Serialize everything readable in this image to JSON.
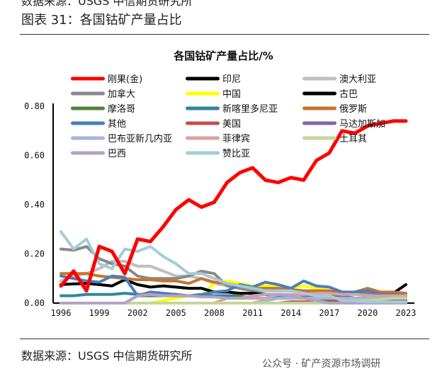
{
  "header": {
    "top_cut_text": "数据来源：USGS 中信期货研究所",
    "figure_title": "图表 31：各国钴矿产量占比"
  },
  "footer": {
    "source": "数据来源：USGS 中信期货研究所",
    "watermark": "公众号 · 矿产资源市场调研"
  },
  "chart_data": {
    "type": "line",
    "title": "各国钴矿产量占比/%",
    "xlabel": "",
    "ylabel": "",
    "ylim": [
      0,
      0.8
    ],
    "yticks": [
      "0.00",
      "0.20",
      "0.40",
      "0.60",
      "0.80"
    ],
    "xticks": [
      "1996",
      "1999",
      "2002",
      "2005",
      "2008",
      "2011",
      "2014",
      "2017",
      "2020",
      "2023"
    ],
    "x": [
      1996,
      1997,
      1998,
      1999,
      2000,
      2001,
      2002,
      2003,
      2004,
      2005,
      2006,
      2007,
      2008,
      2009,
      2010,
      2011,
      2012,
      2013,
      2014,
      2015,
      2016,
      2017,
      2018,
      2019,
      2020,
      2021,
      2022,
      2023
    ],
    "grid": false,
    "legend": "top",
    "series": [
      {
        "name": "刚果(金)",
        "color": "#ff0000",
        "width": 5,
        "values": [
          0.07,
          0.13,
          0.05,
          0.23,
          0.21,
          0.12,
          0.26,
          0.25,
          0.31,
          0.38,
          0.42,
          0.39,
          0.41,
          0.49,
          0.53,
          0.55,
          0.5,
          0.49,
          0.51,
          0.5,
          0.58,
          0.61,
          0.7,
          0.69,
          0.72,
          0.73,
          0.74,
          0.74
        ]
      },
      {
        "name": "印尼",
        "color": "#000000",
        "width": 4,
        "values": [
          0,
          0,
          0,
          0,
          0,
          0,
          0,
          0,
          0,
          0,
          0,
          0,
          0,
          0,
          0,
          0,
          0,
          0,
          0,
          0,
          0,
          0,
          0.005,
          0.01,
          0.01,
          0.02,
          0.04,
          0.075
        ]
      },
      {
        "name": "澳大利亚",
        "color": "#bfbfbf",
        "width": 4,
        "values": [
          0.09,
          0.11,
          0.12,
          0.14,
          0.17,
          0.17,
          0.15,
          0.15,
          0.13,
          0.11,
          0.11,
          0.1,
          0.08,
          0.07,
          0.07,
          0.06,
          0.05,
          0.05,
          0.05,
          0.05,
          0.04,
          0.04,
          0.04,
          0.04,
          0.03,
          0.03,
          0.03,
          0.03
        ]
      },
      {
        "name": "加拿大",
        "color": "#898989",
        "width": 4,
        "values": [
          0.22,
          0.215,
          0.23,
          0.18,
          0.16,
          0.15,
          0.11,
          0.1,
          0.1,
          0.1,
          0.11,
          0.13,
          0.12,
          0.07,
          0.06,
          0.05,
          0.05,
          0.05,
          0.05,
          0.05,
          0.04,
          0.04,
          0.04,
          0.04,
          0.04,
          0.03,
          0.03,
          0.03
        ]
      },
      {
        "name": "中国",
        "color": "#ffff00",
        "width": 4,
        "values": [
          0,
          0,
          0,
          0,
          0,
          0,
          0,
          0,
          0.01,
          0.02,
          0.03,
          0.03,
          0.08,
          0.09,
          0.08,
          0.07,
          0.07,
          0.07,
          0.06,
          0.07,
          0.06,
          0.05,
          0.04,
          0.04,
          0.02,
          0.01,
          0.01,
          0.01
        ]
      },
      {
        "name": "古巴",
        "color": "#000000",
        "width": 4,
        "values": [
          0.075,
          0.078,
          0.08,
          0.075,
          0.07,
          0.095,
          0.075,
          0.065,
          0.07,
          0.065,
          0.06,
          0.06,
          0.045,
          0.045,
          0.04,
          0.04,
          0.035,
          0.03,
          0.03,
          0.025,
          0.02,
          0.02,
          0.02,
          0.02,
          0.02,
          0.02,
          0.02,
          0.02
        ]
      },
      {
        "name": "摩洛哥",
        "color": "#548235",
        "width": 4,
        "values": [
          0,
          0,
          0,
          0,
          0,
          0,
          0.03,
          0.03,
          0.03,
          0.03,
          0.03,
          0.03,
          0.03,
          0.03,
          0.03,
          0.02,
          0.02,
          0.02,
          0.02,
          0.02,
          0.02,
          0.01,
          0.01,
          0.01,
          0.01,
          0.01,
          0.01,
          0.01
        ]
      },
      {
        "name": "新喀里多尼亚",
        "color": "#31859c",
        "width": 4,
        "values": [
          0.03,
          0.03,
          0.035,
          0.035,
          0.035,
          0.04,
          0.035,
          0.035,
          0.035,
          0.035,
          0.03,
          0.03,
          0.03,
          0.03,
          0.02,
          0.02,
          0.02,
          0.025,
          0.03,
          0.03,
          0.025,
          0.02,
          0.02,
          0.02,
          0.02,
          0.02,
          0.02,
          0.02
        ]
      },
      {
        "name": "俄罗斯",
        "color": "#c8742f",
        "width": 4,
        "values": [
          0.12,
          0.12,
          0.12,
          0.11,
          0.105,
          0.1,
          0.095,
          0.095,
          0.09,
          0.09,
          0.08,
          0.1,
          0.085,
          0.08,
          0.07,
          0.06,
          0.06,
          0.06,
          0.055,
          0.05,
          0.05,
          0.05,
          0.04,
          0.045,
          0.06,
          0.045,
          0.045,
          0.04
        ]
      },
      {
        "name": "其他",
        "color": "#4a7ebb",
        "width": 4,
        "values": [
          0.11,
          0.1,
          0.09,
          0.085,
          0.11,
          0.105,
          0.03,
          0.045,
          0.04,
          0.035,
          0.03,
          0.035,
          0.045,
          0.05,
          0.075,
          0.065,
          0.085,
          0.075,
          0.06,
          0.09,
          0.07,
          0.065,
          0.045,
          0.045,
          0.05,
          0.035,
          0.035,
          0.03
        ]
      },
      {
        "name": "美国",
        "color": "#c0504d",
        "width": 4,
        "values": [
          0,
          0,
          0,
          0,
          0,
          0,
          0,
          0,
          0,
          0,
          0,
          0,
          0,
          0,
          0,
          0,
          0,
          0,
          0.005,
          0.005,
          0.005,
          0.005,
          0.005,
          0.005,
          0.005,
          0.005,
          0.005,
          0.005
        ]
      },
      {
        "name": "马达加斯加",
        "color": "#8064a2",
        "width": 4,
        "values": [
          0,
          0,
          0,
          0,
          0,
          0,
          0,
          0,
          0,
          0,
          0,
          0,
          0,
          0,
          0,
          0,
          0.01,
          0.02,
          0.03,
          0.03,
          0.03,
          0.03,
          0.03,
          0.02,
          0.01,
          0.01,
          0.01,
          0.01
        ]
      },
      {
        "name": "巴布亚新几内亚",
        "color": "#a5b6d6",
        "width": 4,
        "values": [
          0,
          0,
          0,
          0,
          0,
          0,
          0,
          0,
          0,
          0,
          0,
          0,
          0,
          0,
          0,
          0,
          0.01,
          0.02,
          0.02,
          0.02,
          0.02,
          0.02,
          0.02,
          0.02,
          0.02,
          0.02,
          0.02,
          0.02
        ]
      },
      {
        "name": "菲律宾",
        "color": "#d9a3a1",
        "width": 4,
        "values": [
          0,
          0,
          0,
          0,
          0,
          0,
          0,
          0,
          0,
          0,
          0,
          0,
          0,
          0.02,
          0.02,
          0.02,
          0.02,
          0.035,
          0.035,
          0.035,
          0.04,
          0.04,
          0.035,
          0.035,
          0.03,
          0.03,
          0.03,
          0.03
        ]
      },
      {
        "name": "土耳其",
        "color": "#c3d69b",
        "width": 4,
        "values": [
          0,
          0,
          0,
          0,
          0,
          0,
          0,
          0,
          0,
          0,
          0,
          0,
          0,
          0,
          0,
          0,
          0,
          0,
          0,
          0,
          0,
          0,
          0,
          0.01,
          0.01,
          0.015,
          0.02,
          0.02
        ]
      },
      {
        "name": "巴西",
        "color": "#b3a2c7",
        "width": 4,
        "values": [
          0,
          0,
          0,
          0,
          0,
          0,
          0.03,
          0.035,
          0.03,
          0.03,
          0.03,
          0.025,
          0.025,
          0.02,
          0.02,
          0.03,
          0.035,
          0.035,
          0.03,
          0.02,
          0.01,
          0,
          0,
          0,
          0,
          0,
          0,
          0
        ]
      },
      {
        "name": "赞比亚",
        "color": "#a5cbd8",
        "width": 4,
        "values": [
          0.29,
          0.22,
          0.26,
          0.16,
          0.14,
          0.22,
          0.21,
          0.23,
          0.19,
          0.16,
          0.12,
          0.12,
          0.1,
          0.08,
          0.07,
          0.06,
          0.05,
          0.05,
          0.05,
          0.04,
          0.03,
          0.03,
          0.01,
          0.01,
          0.005,
          0.005,
          0.005,
          0.005
        ]
      }
    ]
  }
}
